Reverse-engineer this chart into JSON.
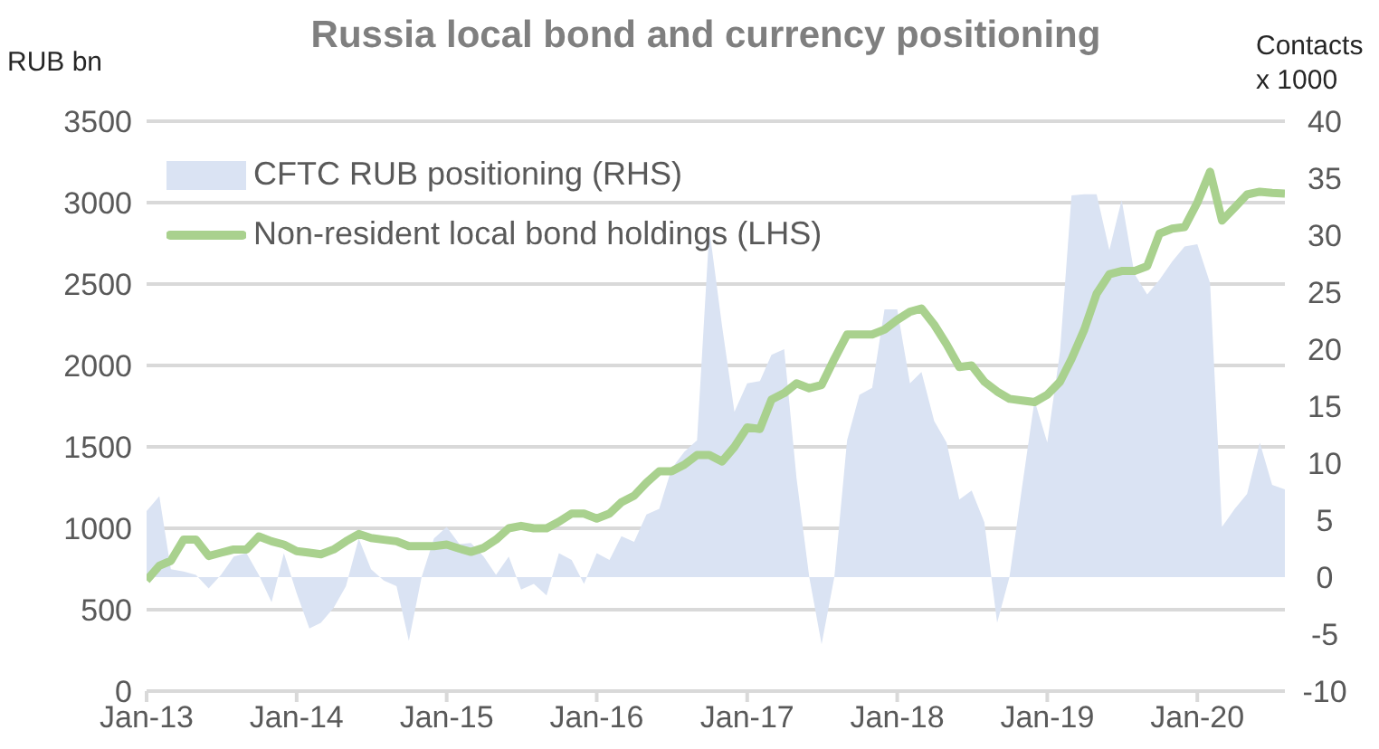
{
  "chart_data": {
    "type": "line",
    "title": "Russia local bond and currency positioning",
    "ylabel": "RUB bn",
    "y2label": "Contacts x 1000",
    "x": [
      "2013-01",
      "2013-02",
      "2013-03",
      "2013-04",
      "2013-05",
      "2013-06",
      "2013-07",
      "2013-08",
      "2013-09",
      "2013-10",
      "2013-11",
      "2013-12",
      "2014-01",
      "2014-02",
      "2014-03",
      "2014-04",
      "2014-05",
      "2014-06",
      "2014-07",
      "2014-08",
      "2014-09",
      "2014-10",
      "2014-11",
      "2014-12",
      "2015-01",
      "2015-02",
      "2015-03",
      "2015-04",
      "2015-05",
      "2015-06",
      "2015-07",
      "2015-08",
      "2015-09",
      "2015-10",
      "2015-11",
      "2015-12",
      "2016-01",
      "2016-02",
      "2016-03",
      "2016-04",
      "2016-05",
      "2016-06",
      "2016-07",
      "2016-08",
      "2016-09",
      "2016-10",
      "2016-11",
      "2016-12",
      "2017-01",
      "2017-02",
      "2017-03",
      "2017-04",
      "2017-05",
      "2017-06",
      "2017-07",
      "2017-08",
      "2017-09",
      "2017-10",
      "2017-11",
      "2017-12",
      "2018-01",
      "2018-02",
      "2018-03",
      "2018-04",
      "2018-05",
      "2018-06",
      "2018-07",
      "2018-08",
      "2018-09",
      "2018-10",
      "2018-11",
      "2018-12",
      "2019-01",
      "2019-02",
      "2019-03",
      "2019-04",
      "2019-05",
      "2019-06",
      "2019-07",
      "2019-08",
      "2019-09",
      "2019-10",
      "2019-11",
      "2019-12",
      "2020-01",
      "2020-02",
      "2020-03",
      "2020-04",
      "2020-05",
      "2020-06",
      "2020-07",
      "2020-08"
    ],
    "series": [
      {
        "name": "CFTC RUB positioning (RHS)",
        "type": "area",
        "axis": "y2",
        "color": "#dae3f3",
        "values": [
          5.8,
          7.1,
          0.7,
          0.5,
          0.2,
          -1.0,
          0.2,
          1.8,
          2.1,
          0.2,
          -2.2,
          2.1,
          -1.4,
          -4.5,
          -4.0,
          -2.7,
          -0.8,
          3.4,
          0.7,
          -0.3,
          -0.8,
          -5.6,
          0,
          3.4,
          4.4,
          2.9,
          3.0,
          1.8,
          0.2,
          1.8,
          -1.1,
          -0.6,
          -1.6,
          2.1,
          1.5,
          -0.6,
          2.1,
          1.5,
          3.6,
          3.1,
          5.5,
          6.0,
          9.5,
          11,
          12,
          30.5,
          22,
          14.5,
          17,
          17.2,
          19.5,
          20,
          8.7,
          0,
          -5.9,
          0,
          12,
          16,
          16.6,
          23.5,
          23.5,
          17,
          18,
          13.7,
          11.8,
          6.8,
          7.6,
          4.8,
          -4.0,
          0,
          8,
          15.5,
          11.8,
          19.8,
          33.5,
          33.6,
          33.6,
          28.7,
          33.1,
          26.6,
          24.8,
          26.1,
          27.7,
          29,
          29.2,
          25.8,
          4.4,
          6.0,
          7.3,
          11.8,
          8.1,
          7.7
        ]
      },
      {
        "name": "Non-resident local bond holdings (LHS)",
        "color": "#a9d18e",
        "values": [
          680,
          770,
          800,
          930,
          930,
          830,
          850,
          870,
          870,
          950,
          920,
          900,
          860,
          850,
          840,
          870,
          920,
          965,
          940,
          930,
          920,
          890,
          890,
          890,
          900,
          875,
          855,
          880,
          930,
          1000,
          1015,
          1000,
          1000,
          1040,
          1090,
          1090,
          1060,
          1090,
          1160,
          1200,
          1280,
          1350,
          1350,
          1390,
          1450,
          1450,
          1410,
          1500,
          1620,
          1610,
          1790,
          1830,
          1890,
          1860,
          1880,
          2040,
          2190,
          2190,
          2190,
          2220,
          2280,
          2330,
          2350,
          2250,
          2130,
          1990,
          2000,
          1900,
          1840,
          1795,
          1785,
          1775,
          1820,
          1900,
          2040,
          2220,
          2440,
          2560,
          2580,
          2580,
          2610,
          2810,
          2840,
          2850,
          3000,
          3190,
          2890,
          2970,
          3050,
          3067,
          3060,
          3056
        ]
      }
    ],
    "xlim": [
      "2013-01",
      "2020-08"
    ],
    "xticks": [
      {
        "value": "2013-01",
        "label": "Jan-13"
      },
      {
        "value": "2014-01",
        "label": "Jan-14"
      },
      {
        "value": "2015-01",
        "label": "Jan-15"
      },
      {
        "value": "2016-01",
        "label": "Jan-16"
      },
      {
        "value": "2017-01",
        "label": "Jan-17"
      },
      {
        "value": "2018-01",
        "label": "Jan-18"
      },
      {
        "value": "2019-01",
        "label": "Jan-19"
      },
      {
        "value": "2020-01",
        "label": "Jan-20"
      }
    ],
    "ylim": [
      0,
      3500
    ],
    "yticks": [
      0,
      500,
      1000,
      1500,
      2000,
      2500,
      3000,
      3500
    ],
    "y2lim": [
      -10,
      40
    ],
    "y2ticks": [
      -10,
      -5,
      0,
      5,
      10,
      15,
      20,
      25,
      30,
      35,
      40
    ],
    "grid": "y",
    "legend": "top left",
    "marker": "none",
    "line_style": "solid"
  }
}
